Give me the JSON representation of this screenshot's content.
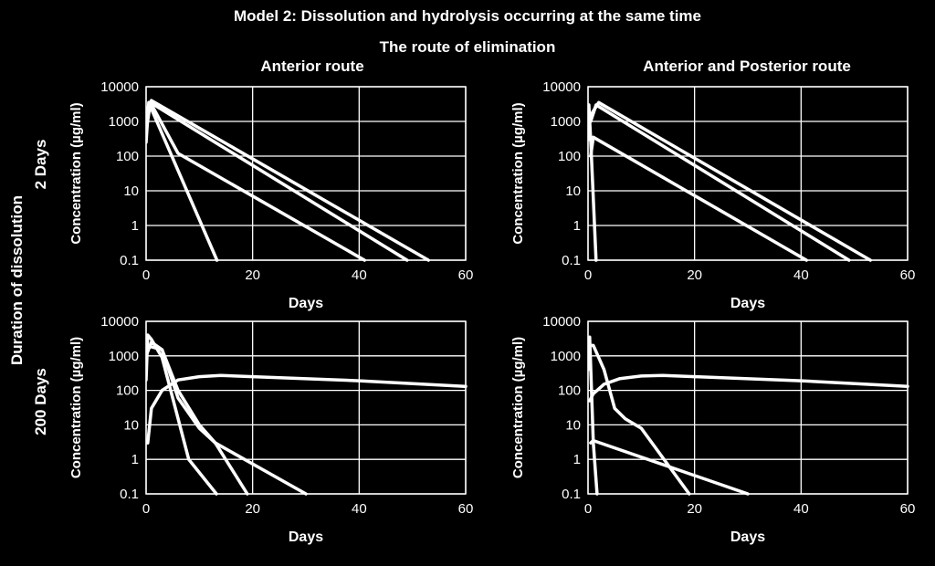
{
  "figure": {
    "title": "Model 2: Dissolution and hydrolysis occurring at the same time",
    "subtitle": "The route of elimination",
    "row_group_label": "Duration of dissolution",
    "column_titles": [
      "Anterior route",
      "Anterior and Posterior route"
    ],
    "row_titles": [
      "2 Days",
      "200 Days"
    ]
  },
  "chart_data": [
    {
      "type": "line",
      "title": "Anterior route",
      "row": "2 Days",
      "xlabel": "Days",
      "ylabel": "Concentration (µg/ml)",
      "xlim": [
        0,
        60
      ],
      "ylim": [
        0.1,
        10000
      ],
      "yscale": "log",
      "xticks": [
        "0",
        "20",
        "40",
        "60"
      ],
      "yticks": [
        "0.1",
        "1",
        "10",
        "100",
        "1000",
        "10000"
      ],
      "grid": true,
      "line_color": "#ffffff",
      "series": [
        {
          "x": [
            0,
            0.5,
            2,
            13.3
          ],
          "y": [
            250,
            3500,
            1000,
            0.1
          ]
        },
        {
          "x": [
            0,
            0.8,
            6,
            41
          ],
          "y": [
            500,
            3500,
            120,
            0.1
          ]
        },
        {
          "x": [
            0,
            0.8,
            49
          ],
          "y": [
            1500,
            3500,
            0.1
          ]
        },
        {
          "x": [
            0,
            1,
            53
          ],
          "y": [
            2000,
            4000,
            0.1
          ]
        }
      ]
    },
    {
      "type": "line",
      "title": "Anterior and Posterior route",
      "row": "2 Days",
      "xlabel": "Days",
      "ylabel": "Concentration (µg/ml)",
      "xlim": [
        0,
        60
      ],
      "ylim": [
        0.1,
        10000
      ],
      "yscale": "log",
      "xticks": [
        "0",
        "20",
        "40",
        "60"
      ],
      "yticks": [
        "0.1",
        "1",
        "10",
        "100",
        "1000",
        "10000"
      ],
      "grid": true,
      "line_color": "#ffffff",
      "series": [
        {
          "x": [
            0,
            0.15,
            0.5,
            1.5
          ],
          "y": [
            300,
            3000,
            300,
            0.1
          ]
        },
        {
          "x": [
            0.5,
            1,
            41
          ],
          "y": [
            100,
            350,
            0.1
          ]
        },
        {
          "x": [
            0.5,
            1.5,
            49
          ],
          "y": [
            1000,
            3000,
            0.1
          ]
        },
        {
          "x": [
            0.5,
            2,
            53
          ],
          "y": [
            1500,
            3500,
            0.1
          ]
        }
      ]
    },
    {
      "type": "line",
      "title": "Anterior route",
      "row": "200 Days",
      "xlabel": "Days",
      "ylabel": "Concentration (µg/ml)",
      "xlim": [
        0,
        60
      ],
      "ylim": [
        0.1,
        10000
      ],
      "yscale": "log",
      "xticks": [
        "0",
        "20",
        "40",
        "60"
      ],
      "yticks": [
        "0.1",
        "1",
        "10",
        "100",
        "1000",
        "10000"
      ],
      "grid": true,
      "line_color": "#ffffff",
      "series": [
        {
          "x": [
            0,
            0.3,
            1,
            3,
            8,
            13.2
          ],
          "y": [
            200,
            4000,
            3000,
            900,
            1,
            0.1
          ]
        },
        {
          "x": [
            0,
            1,
            3,
            6,
            10,
            13,
            19
          ],
          "y": [
            1000,
            2500,
            1500,
            60,
            8,
            3,
            0.1
          ]
        },
        {
          "x": [
            0,
            3,
            6,
            10,
            13,
            30
          ],
          "y": [
            2000,
            1500,
            100,
            10,
            3,
            0.1
          ]
        },
        {
          "x": [
            0.3,
            1,
            3,
            6,
            10,
            14,
            20,
            40,
            60
          ],
          "y": [
            3,
            30,
            100,
            200,
            250,
            270,
            250,
            190,
            130
          ]
        }
      ]
    },
    {
      "type": "line",
      "title": "Anterior and Posterior route",
      "row": "200 Days",
      "xlabel": "Days",
      "ylabel": "Concentration (µg/ml)",
      "xlim": [
        0,
        60
      ],
      "ylim": [
        0.1,
        10000
      ],
      "yscale": "log",
      "xticks": [
        "0",
        "20",
        "40",
        "60"
      ],
      "yticks": [
        "0.1",
        "1",
        "10",
        "100",
        "1000",
        "10000"
      ],
      "grid": true,
      "line_color": "#ffffff",
      "series": [
        {
          "x": [
            0,
            0.3,
            1,
            1.7
          ],
          "y": [
            400,
            3500,
            3,
            0.1
          ]
        },
        {
          "x": [
            0.5,
            1,
            30
          ],
          "y": [
            3,
            3.5,
            0.1
          ]
        },
        {
          "x": [
            0.3,
            1,
            3,
            5,
            7,
            10,
            19
          ],
          "y": [
            2000,
            2000,
            400,
            30,
            15,
            8,
            0.1
          ]
        },
        {
          "x": [
            0.3,
            1,
            3,
            6,
            10,
            14,
            20,
            40,
            60
          ],
          "y": [
            50,
            80,
            150,
            220,
            260,
            270,
            250,
            190,
            130
          ]
        }
      ]
    }
  ]
}
